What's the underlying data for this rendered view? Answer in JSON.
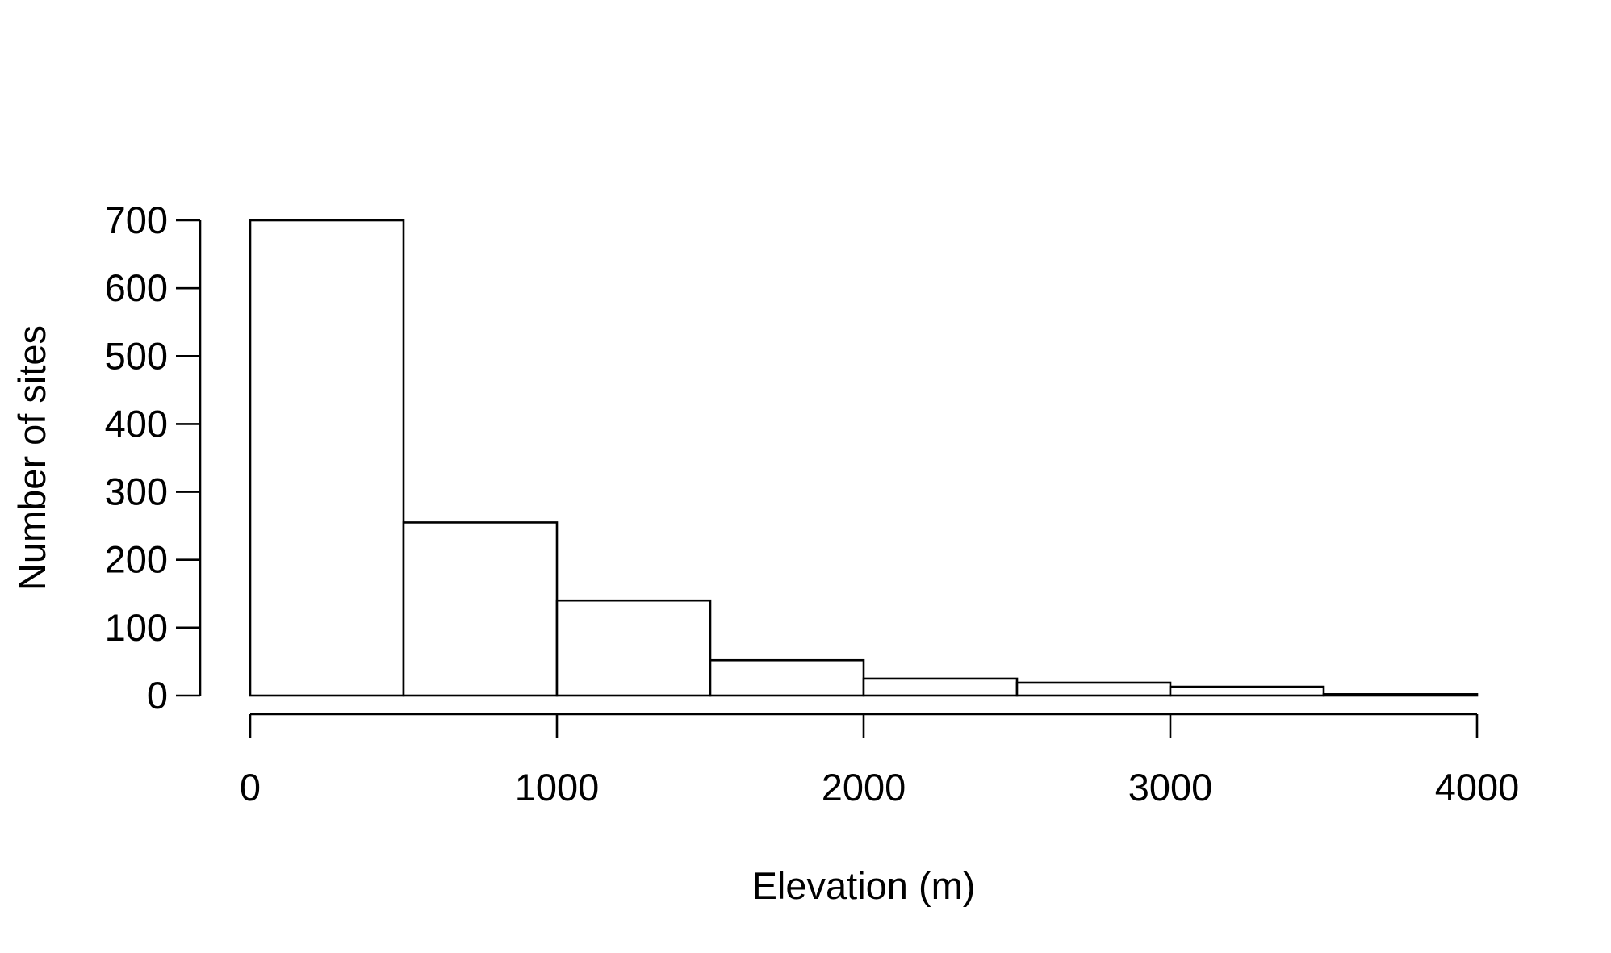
{
  "chart_data": {
    "type": "bar",
    "subtype": "histogram",
    "title": "",
    "xlabel": "Elevation (m)",
    "ylabel": "Number of sites",
    "bins": [
      {
        "start": 0,
        "end": 500,
        "value": 700
      },
      {
        "start": 500,
        "end": 1000,
        "value": 255
      },
      {
        "start": 1000,
        "end": 1500,
        "value": 140
      },
      {
        "start": 1500,
        "end": 2000,
        "value": 52
      },
      {
        "start": 2000,
        "end": 2500,
        "value": 25
      },
      {
        "start": 2500,
        "end": 3000,
        "value": 19
      },
      {
        "start": 3000,
        "end": 3500,
        "value": 13
      },
      {
        "start": 3500,
        "end": 4000,
        "value": 2
      }
    ],
    "xlim": [
      0,
      4000
    ],
    "ylim": [
      0,
      700
    ],
    "xticks": [
      0,
      1000,
      2000,
      3000,
      4000
    ],
    "yticks": [
      0,
      100,
      200,
      300,
      400,
      500,
      600,
      700
    ],
    "xtick_labels": [
      "0",
      "1000",
      "2000",
      "3000",
      "4000"
    ],
    "ytick_labels": [
      "0",
      "100",
      "200",
      "300",
      "400",
      "500",
      "600",
      "700"
    ],
    "grid": false,
    "legend": "none",
    "colors": {
      "bar_fill": "#ffffff",
      "bar_edge": "#000000",
      "axis": "#000000",
      "background": "#ffffff"
    }
  }
}
